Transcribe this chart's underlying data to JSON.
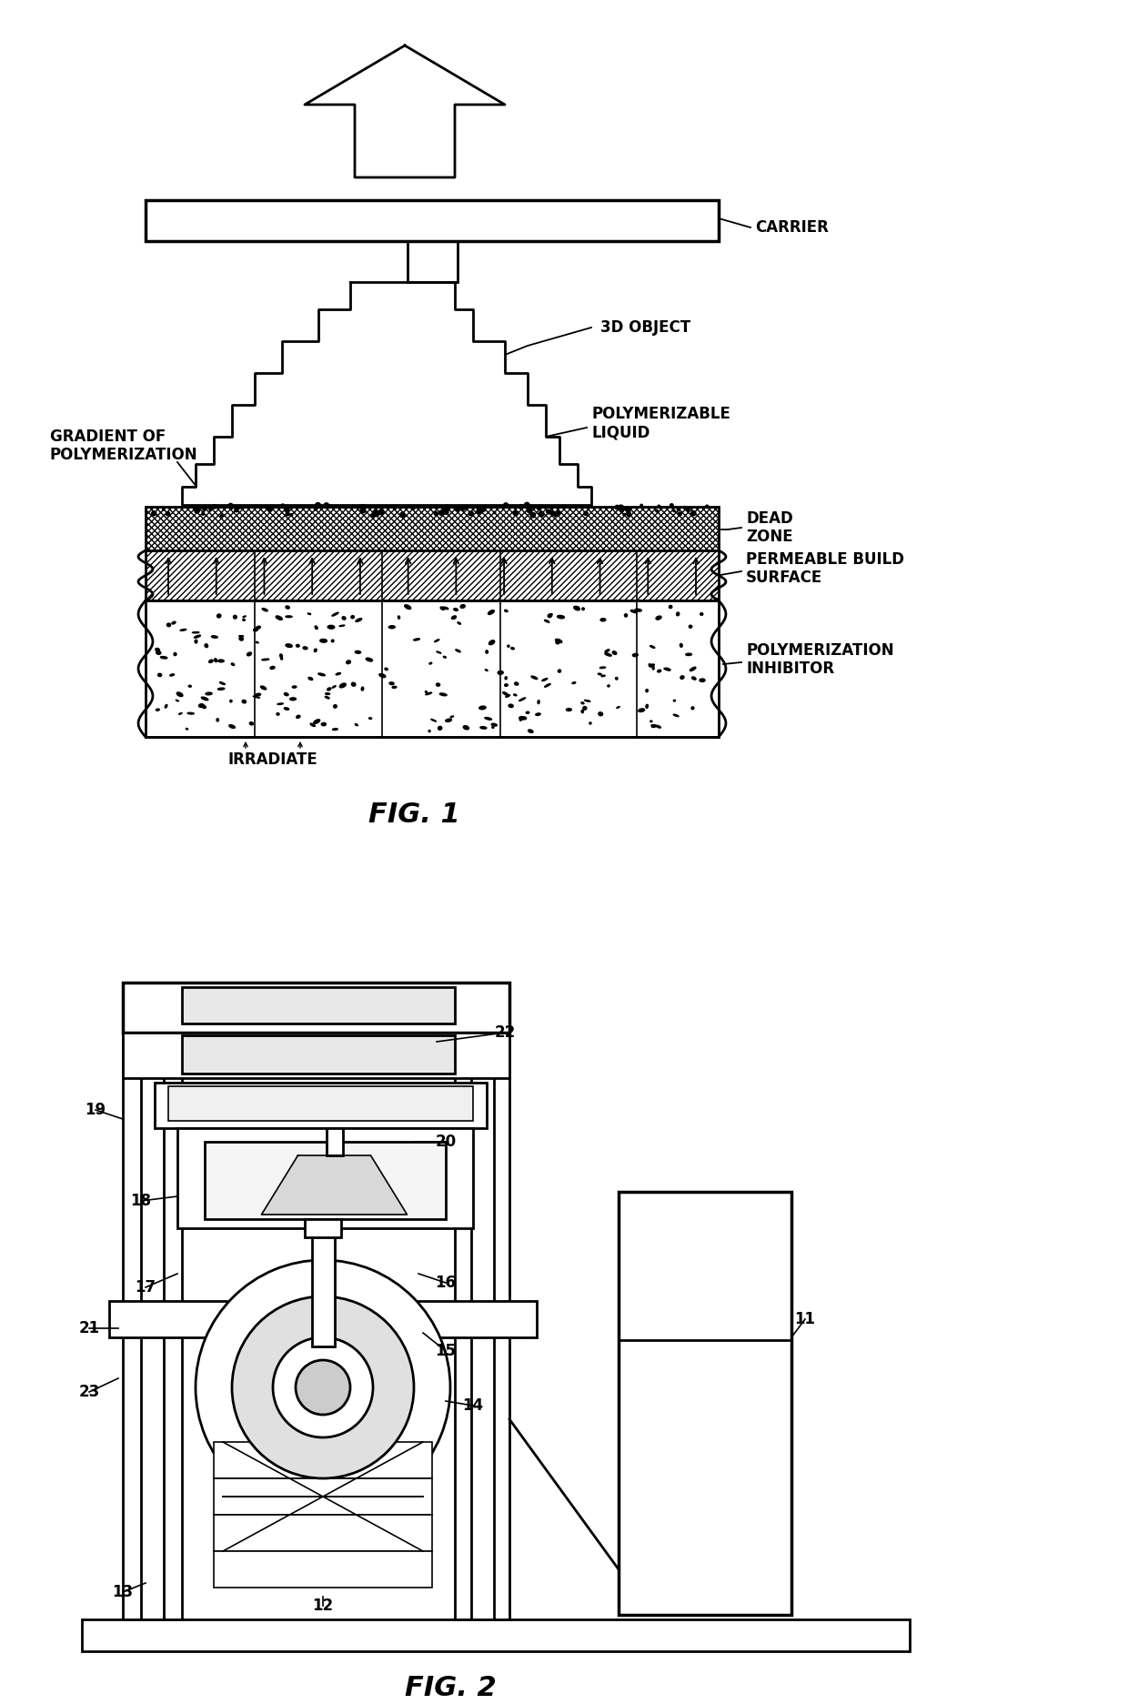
{
  "fig_width": 12.4,
  "fig_height": 18.73,
  "bg_color": "#ffffff",
  "line_color": "#000000",
  "fig1_title": "FIG. 1",
  "fig2_title": "FIG. 2",
  "fig1_labels": {
    "carrier": "CARRIER",
    "3d_object": "3D OBJECT",
    "polymerizable_liquid": "POLYMERIZABLE\nLIQUID",
    "dead_zone": "DEAD\nZONE",
    "gradient": "GRADIENT OF\nPOLYMERIZATION",
    "permeable": "PERMEABLE BUILD\nSURFACE",
    "inhibitor": "POLYMERIZATION\nINHIBITOR",
    "irradiate": "IRRADIATE"
  }
}
